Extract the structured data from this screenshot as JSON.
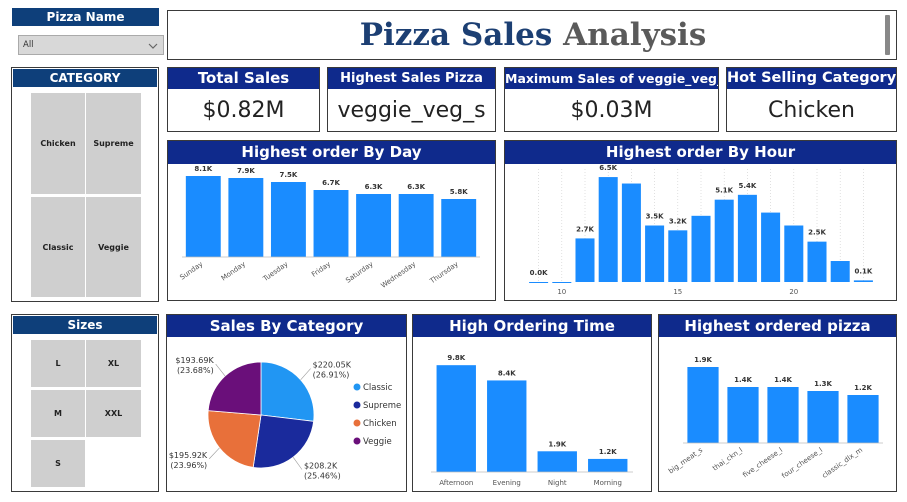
{
  "title": {
    "part1": "Pizza Sales ",
    "part2": "Analysis"
  },
  "slicers": {
    "pizza_name": {
      "label": "Pizza Name",
      "value": "All"
    },
    "category": {
      "label": "CATEGORY",
      "items": [
        "Chicken",
        "Supreme",
        "Classic",
        "Veggie"
      ]
    },
    "sizes": {
      "label": "Sizes",
      "items": [
        "L",
        "XL",
        "M",
        "XXL",
        "S"
      ]
    }
  },
  "kpis": [
    {
      "title": "Total Sales",
      "value": "$0.82M"
    },
    {
      "title": "Highest Sales Pizza",
      "value": "veggie_veg_s"
    },
    {
      "title": "Maximum Sales of veggie_veg_s",
      "value": "$0.03M"
    },
    {
      "title": "Hot Selling Category",
      "value": "Chicken"
    }
  ],
  "colors": {
    "bar": "#1a8cff",
    "header": "#0f2a8c",
    "classic": "#2196f3",
    "supreme": "#1a2a9c",
    "chicken": "#e8703a",
    "veggie": "#6a0f7a"
  },
  "chart_data": [
    {
      "type": "bar",
      "title": "Highest order By Day",
      "categories": [
        "Sunday",
        "Monday",
        "Tuesday",
        "Friday",
        "Saturday",
        "Wednesday",
        "Thursday"
      ],
      "values": [
        8.1,
        7.9,
        7.5,
        6.7,
        6.3,
        6.3,
        5.8
      ],
      "labels": [
        "8.1K",
        "7.9K",
        "7.5K",
        "6.7K",
        "6.3K",
        "6.3K",
        "5.8K"
      ],
      "ylim": [
        0,
        9
      ]
    },
    {
      "type": "bar",
      "title": "Highest order By Hour",
      "x": [
        9,
        10,
        11,
        12,
        13,
        14,
        15,
        16,
        17,
        18,
        19,
        20,
        21,
        22,
        23
      ],
      "values": [
        0.0,
        0.0,
        2.7,
        6.5,
        6.1,
        3.5,
        3.2,
        4.1,
        5.1,
        5.4,
        4.3,
        3.5,
        2.5,
        1.3,
        0.1
      ],
      "labels": [
        "0.0K",
        "",
        "2.7K",
        "6.5K",
        "",
        "3.5K",
        "3.2K",
        "",
        "5.1K",
        "5.4K",
        "",
        "",
        "2.5K",
        "",
        "0.1K"
      ],
      "xticks": [
        10,
        15,
        20
      ],
      "ylim": [
        0,
        7
      ]
    },
    {
      "type": "pie",
      "title": "Sales By Category",
      "slices": [
        {
          "name": "Classic",
          "value": 220.05,
          "label": "$220.05K",
          "pct": "(26.91%)"
        },
        {
          "name": "Supreme",
          "value": 208.2,
          "label": "$208.2K",
          "pct": "(25.46%)"
        },
        {
          "name": "Chicken",
          "value": 195.92,
          "label": "$195.92K",
          "pct": "(23.96%)"
        },
        {
          "name": "Veggie",
          "value": 193.69,
          "label": "$193.69K",
          "pct": "(23.68%)"
        }
      ],
      "legend": [
        "Classic",
        "Supreme",
        "Chicken",
        "Veggie"
      ]
    },
    {
      "type": "bar",
      "title": "High Ordering Time",
      "categories": [
        "Afternoon",
        "Evening",
        "Night",
        "Morning"
      ],
      "values": [
        9.8,
        8.4,
        1.9,
        1.2
      ],
      "labels": [
        "9.8K",
        "8.4K",
        "1.9K",
        "1.2K"
      ],
      "ylim": [
        0,
        10
      ]
    },
    {
      "type": "bar",
      "title": "Highest ordered pizza",
      "categories": [
        "big_meat_s",
        "thai_ckn_l",
        "five_cheese_l",
        "four_cheese_l",
        "classic_dlx_m"
      ],
      "values": [
        1.9,
        1.4,
        1.4,
        1.3,
        1.2
      ],
      "labels": [
        "1.9K",
        "1.4K",
        "1.4K",
        "1.3K",
        "1.2K"
      ],
      "ylim": [
        0,
        2
      ]
    }
  ]
}
